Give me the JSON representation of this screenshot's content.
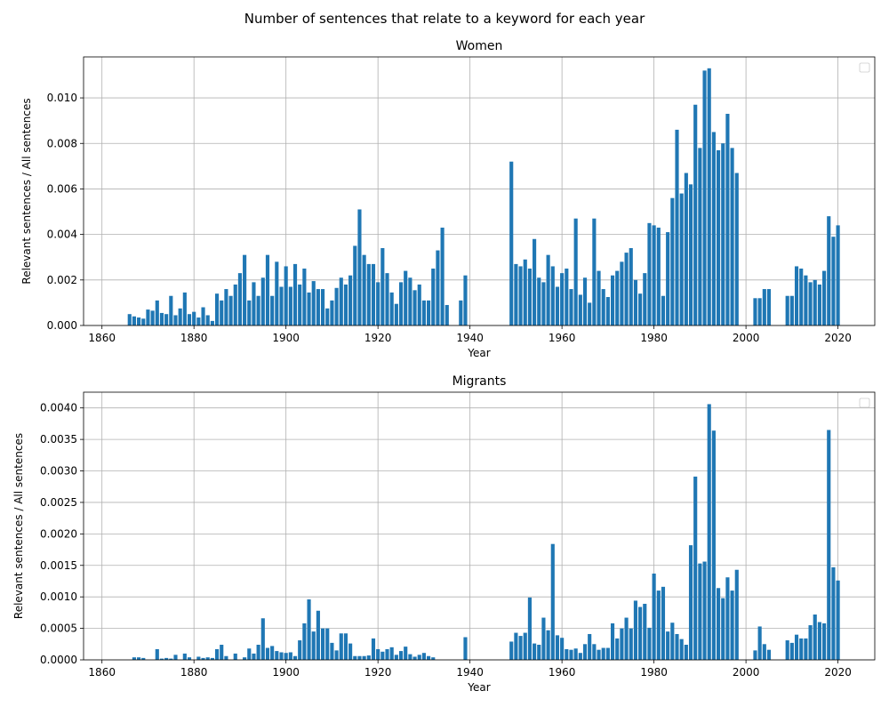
{
  "figure": {
    "suptitle": "Number of sentences that relate to a keyword for each year"
  },
  "colors": {
    "bar": "#1f77b4",
    "grid": "#b0b0b0",
    "axis": "#000000"
  },
  "chart_data": [
    {
      "type": "bar",
      "title": "Women",
      "xlabel": "Year",
      "ylabel": "Relevant sentences / All sentences",
      "xlim": [
        1856,
        2028
      ],
      "ylim": [
        0,
        0.0118
      ],
      "xticks": [
        1860,
        1880,
        1900,
        1920,
        1940,
        1960,
        1980,
        2000,
        2020
      ],
      "xtick_labels": [
        "1860",
        "1880",
        "1900",
        "1920",
        "1940",
        "1960",
        "1980",
        "2000",
        "2020"
      ],
      "yticks": [
        0,
        0.002,
        0.004,
        0.006,
        0.008,
        0.01
      ],
      "ytick_labels": [
        "0.000",
        "0.002",
        "0.004",
        "0.006",
        "0.008",
        "0.010"
      ],
      "grid": true,
      "legend": "top-right (empty)",
      "x": [
        1866,
        1867,
        1868,
        1869,
        1870,
        1871,
        1872,
        1873,
        1874,
        1875,
        1876,
        1877,
        1878,
        1879,
        1880,
        1881,
        1882,
        1883,
        1884,
        1885,
        1886,
        1887,
        1888,
        1889,
        1890,
        1891,
        1892,
        1893,
        1894,
        1895,
        1896,
        1897,
        1898,
        1899,
        1900,
        1901,
        1902,
        1903,
        1904,
        1905,
        1906,
        1907,
        1908,
        1909,
        1910,
        1911,
        1912,
        1913,
        1914,
        1915,
        1916,
        1917,
        1918,
        1919,
        1920,
        1921,
        1922,
        1923,
        1924,
        1925,
        1926,
        1927,
        1928,
        1929,
        1930,
        1931,
        1932,
        1933,
        1934,
        1935,
        1938,
        1939,
        1949,
        1950,
        1951,
        1952,
        1953,
        1954,
        1955,
        1956,
        1957,
        1958,
        1959,
        1960,
        1961,
        1962,
        1963,
        1964,
        1965,
        1966,
        1967,
        1968,
        1969,
        1970,
        1971,
        1972,
        1973,
        1974,
        1975,
        1976,
        1977,
        1978,
        1979,
        1980,
        1981,
        1982,
        1983,
        1984,
        1985,
        1986,
        1987,
        1988,
        1989,
        1990,
        1991,
        1992,
        1993,
        1994,
        1995,
        1996,
        1997,
        1998,
        2002,
        2003,
        2004,
        2005,
        2009,
        2010,
        2011,
        2012,
        2013,
        2014,
        2015,
        2016,
        2017,
        2018,
        2019,
        2020
      ],
      "values": [
        0.0005,
        0.0004,
        0.00035,
        0.0003,
        0.0007,
        0.00065,
        0.0011,
        0.00055,
        0.0005,
        0.0013,
        0.00045,
        0.00075,
        0.00145,
        0.0005,
        0.0006,
        0.00035,
        0.0008,
        0.00045,
        0.0002,
        0.0014,
        0.0011,
        0.0016,
        0.0013,
        0.0018,
        0.0023,
        0.0031,
        0.0011,
        0.0019,
        0.0013,
        0.0021,
        0.0031,
        0.0013,
        0.0028,
        0.0017,
        0.0026,
        0.0017,
        0.0027,
        0.0018,
        0.0025,
        0.00145,
        0.00195,
        0.0016,
        0.0016,
        0.00075,
        0.0011,
        0.00165,
        0.0021,
        0.0018,
        0.0022,
        0.0035,
        0.0051,
        0.0031,
        0.0027,
        0.0027,
        0.0019,
        0.0034,
        0.0023,
        0.00145,
        0.00095,
        0.0019,
        0.0024,
        0.0021,
        0.00155,
        0.0018,
        0.0011,
        0.0011,
        0.0025,
        0.0033,
        0.0043,
        0.0009,
        0.0011,
        0.0022,
        0.0072,
        0.0027,
        0.0026,
        0.0029,
        0.0025,
        0.0038,
        0.0021,
        0.0019,
        0.0031,
        0.0026,
        0.0017,
        0.0023,
        0.0025,
        0.0016,
        0.0047,
        0.00135,
        0.0021,
        0.001,
        0.0047,
        0.0024,
        0.0016,
        0.00125,
        0.0022,
        0.0024,
        0.0028,
        0.0032,
        0.0034,
        0.002,
        0.0014,
        0.0023,
        0.0045,
        0.0044,
        0.0043,
        0.0013,
        0.0041,
        0.0056,
        0.0086,
        0.0058,
        0.0067,
        0.0062,
        0.0097,
        0.0078,
        0.0112,
        0.0113,
        0.0085,
        0.0077,
        0.008,
        0.0093,
        0.0078,
        0.0067,
        0.0012,
        0.0012,
        0.0016,
        0.0016,
        0.0013,
        0.0013,
        0.0026,
        0.0025,
        0.0022,
        0.0019,
        0.002,
        0.0018,
        0.0024,
        0.0048,
        0.0039,
        0.0044
      ]
    },
    {
      "type": "bar",
      "title": "Migrants",
      "xlabel": "Year",
      "ylabel": "Relevant sentences / All sentences",
      "xlim": [
        1856,
        2028
      ],
      "ylim": [
        0,
        0.00425
      ],
      "xticks": [
        1860,
        1880,
        1900,
        1920,
        1940,
        1960,
        1980,
        2000,
        2020
      ],
      "xtick_labels": [
        "1860",
        "1880",
        "1900",
        "1920",
        "1940",
        "1960",
        "1980",
        "2000",
        "2020"
      ],
      "yticks": [
        0,
        0.0005,
        0.001,
        0.0015,
        0.002,
        0.0025,
        0.003,
        0.0035,
        0.004
      ],
      "ytick_labels": [
        "0.0000",
        "0.0005",
        "0.0010",
        "0.0015",
        "0.0020",
        "0.0025",
        "0.0030",
        "0.0035",
        "0.0040"
      ],
      "grid": true,
      "legend": "top-right (empty)",
      "x": [
        1867,
        1868,
        1869,
        1872,
        1873,
        1874,
        1875,
        1876,
        1878,
        1879,
        1881,
        1882,
        1883,
        1884,
        1885,
        1886,
        1887,
        1889,
        1891,
        1892,
        1893,
        1894,
        1895,
        1896,
        1897,
        1898,
        1899,
        1900,
        1901,
        1902,
        1903,
        1904,
        1905,
        1906,
        1907,
        1908,
        1909,
        1910,
        1911,
        1912,
        1913,
        1914,
        1915,
        1916,
        1917,
        1918,
        1919,
        1920,
        1921,
        1922,
        1923,
        1924,
        1925,
        1926,
        1927,
        1928,
        1929,
        1930,
        1931,
        1932,
        1939,
        1949,
        1950,
        1951,
        1952,
        1953,
        1954,
        1955,
        1956,
        1957,
        1958,
        1959,
        1960,
        1961,
        1962,
        1963,
        1964,
        1965,
        1966,
        1967,
        1968,
        1969,
        1970,
        1971,
        1972,
        1973,
        1974,
        1975,
        1976,
        1977,
        1978,
        1979,
        1980,
        1981,
        1982,
        1983,
        1984,
        1985,
        1986,
        1987,
        1988,
        1989,
        1990,
        1991,
        1992,
        1993,
        1994,
        1995,
        1996,
        1997,
        1998,
        2002,
        2003,
        2004,
        2005,
        2009,
        2010,
        2011,
        2012,
        2013,
        2014,
        2015,
        2016,
        2017,
        2018,
        2019,
        2020
      ],
      "values": [
        4e-05,
        4e-05,
        3e-05,
        0.00017,
        2e-05,
        3e-05,
        2e-05,
        8e-05,
        0.0001,
        4e-05,
        5e-05,
        3e-05,
        4e-05,
        3e-05,
        0.00017,
        0.00024,
        6e-05,
        0.0001,
        4e-05,
        0.00018,
        0.0001,
        0.00024,
        0.00066,
        0.00019,
        0.00022,
        0.00014,
        0.00012,
        0.00011,
        0.00012,
        6e-05,
        0.00031,
        0.00058,
        0.00096,
        0.00045,
        0.00078,
        0.0005,
        0.0005,
        0.00027,
        0.00015,
        0.00042,
        0.00042,
        0.00026,
        6e-05,
        6e-05,
        6e-05,
        7e-05,
        0.00034,
        0.00017,
        0.00013,
        0.00017,
        0.0002,
        8e-05,
        0.00014,
        0.00021,
        9e-05,
        5e-05,
        8e-05,
        0.00011,
        6e-05,
        4e-05,
        0.00036,
        0.00029,
        0.00043,
        0.00038,
        0.00043,
        0.00099,
        0.00026,
        0.00024,
        0.00067,
        0.00047,
        0.00184,
        0.00039,
        0.00035,
        0.00017,
        0.00016,
        0.00018,
        0.00011,
        0.00025,
        0.00041,
        0.00025,
        0.00016,
        0.00019,
        0.00019,
        0.00058,
        0.00034,
        0.0005,
        0.00067,
        0.0005,
        0.00094,
        0.00084,
        0.00089,
        0.00051,
        0.00137,
        0.0011,
        0.00116,
        0.00045,
        0.00059,
        0.00041,
        0.00033,
        0.00024,
        0.00182,
        0.00291,
        0.00153,
        0.00156,
        0.00406,
        0.00364,
        0.00114,
        0.00098,
        0.00131,
        0.0011,
        0.00143,
        0.00015,
        0.00053,
        0.00025,
        0.00016,
        0.00031,
        0.00027,
        0.0004,
        0.00034,
        0.00034,
        0.00055,
        0.00072,
        0.0006,
        0.00058,
        0.00365,
        0.00147,
        0.00126
      ]
    }
  ]
}
